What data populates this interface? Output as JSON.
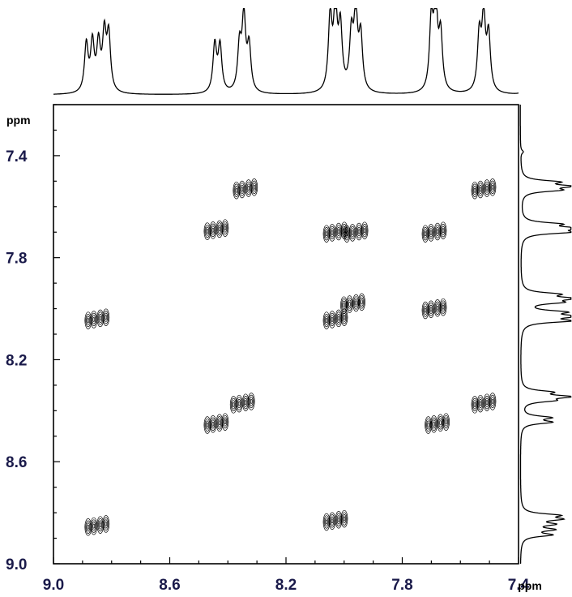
{
  "chart_data": {
    "type": "heatmap",
    "subtype": "2D NMR COSY contour plot",
    "x_axis": {
      "unit_label": "ppm",
      "lim": [
        9.0,
        7.4
      ],
      "ticks": [
        "9.0",
        "8.6",
        "8.2",
        "7.8",
        "7.4"
      ],
      "tick_values": [
        9.0,
        8.6,
        8.2,
        7.8,
        7.4
      ],
      "reversed": true
    },
    "y_axis": {
      "unit_label": "ppm",
      "lim": [
        7.2,
        9.0
      ],
      "ticks": [
        "7.4",
        "7.8",
        "8.2",
        "8.6",
        "9.0"
      ],
      "tick_values": [
        7.4,
        7.8,
        8.2,
        8.6,
        9.0
      ],
      "reversed": true
    },
    "projection_peaks": [
      {
        "ppm": 8.887,
        "height": 0.62
      },
      {
        "ppm": 8.866,
        "height": 0.62
      },
      {
        "ppm": 8.845,
        "height": 0.6
      },
      {
        "ppm": 8.825,
        "height": 0.72
      },
      {
        "ppm": 8.81,
        "height": 0.72
      },
      {
        "ppm": 8.445,
        "height": 0.62
      },
      {
        "ppm": 8.427,
        "height": 0.6
      },
      {
        "ppm": 8.36,
        "height": 0.58
      },
      {
        "ppm": 8.345,
        "height": 0.95
      },
      {
        "ppm": 8.327,
        "height": 0.58
      },
      {
        "ppm": 8.048,
        "height": 0.95
      },
      {
        "ppm": 8.03,
        "height": 1.05
      },
      {
        "ppm": 8.013,
        "height": 0.8
      },
      {
        "ppm": 7.975,
        "height": 0.7
      },
      {
        "ppm": 7.96,
        "height": 0.98
      },
      {
        "ppm": 7.943,
        "height": 0.7
      },
      {
        "ppm": 7.7,
        "height": 0.9
      },
      {
        "ppm": 7.685,
        "height": 1.1
      },
      {
        "ppm": 7.668,
        "height": 0.72
      },
      {
        "ppm": 7.535,
        "height": 0.72
      },
      {
        "ppm": 7.52,
        "height": 0.92
      },
      {
        "ppm": 7.503,
        "height": 0.72
      },
      {
        "ppm": 7.385,
        "height": 0.06
      }
    ],
    "contour_peaks": [
      {
        "x": 8.34,
        "y": 7.53
      },
      {
        "x": 7.52,
        "y": 7.53
      },
      {
        "x": 8.44,
        "y": 7.69
      },
      {
        "x": 8.03,
        "y": 7.7
      },
      {
        "x": 7.96,
        "y": 7.7
      },
      {
        "x": 7.69,
        "y": 7.7
      },
      {
        "x": 7.97,
        "y": 7.98
      },
      {
        "x": 7.69,
        "y": 8.0
      },
      {
        "x": 8.85,
        "y": 8.04
      },
      {
        "x": 8.03,
        "y": 8.04
      },
      {
        "x": 8.35,
        "y": 8.37
      },
      {
        "x": 7.52,
        "y": 8.37
      },
      {
        "x": 8.44,
        "y": 8.45
      },
      {
        "x": 7.68,
        "y": 8.45
      },
      {
        "x": 8.85,
        "y": 8.85
      },
      {
        "x": 8.03,
        "y": 8.83
      }
    ]
  }
}
